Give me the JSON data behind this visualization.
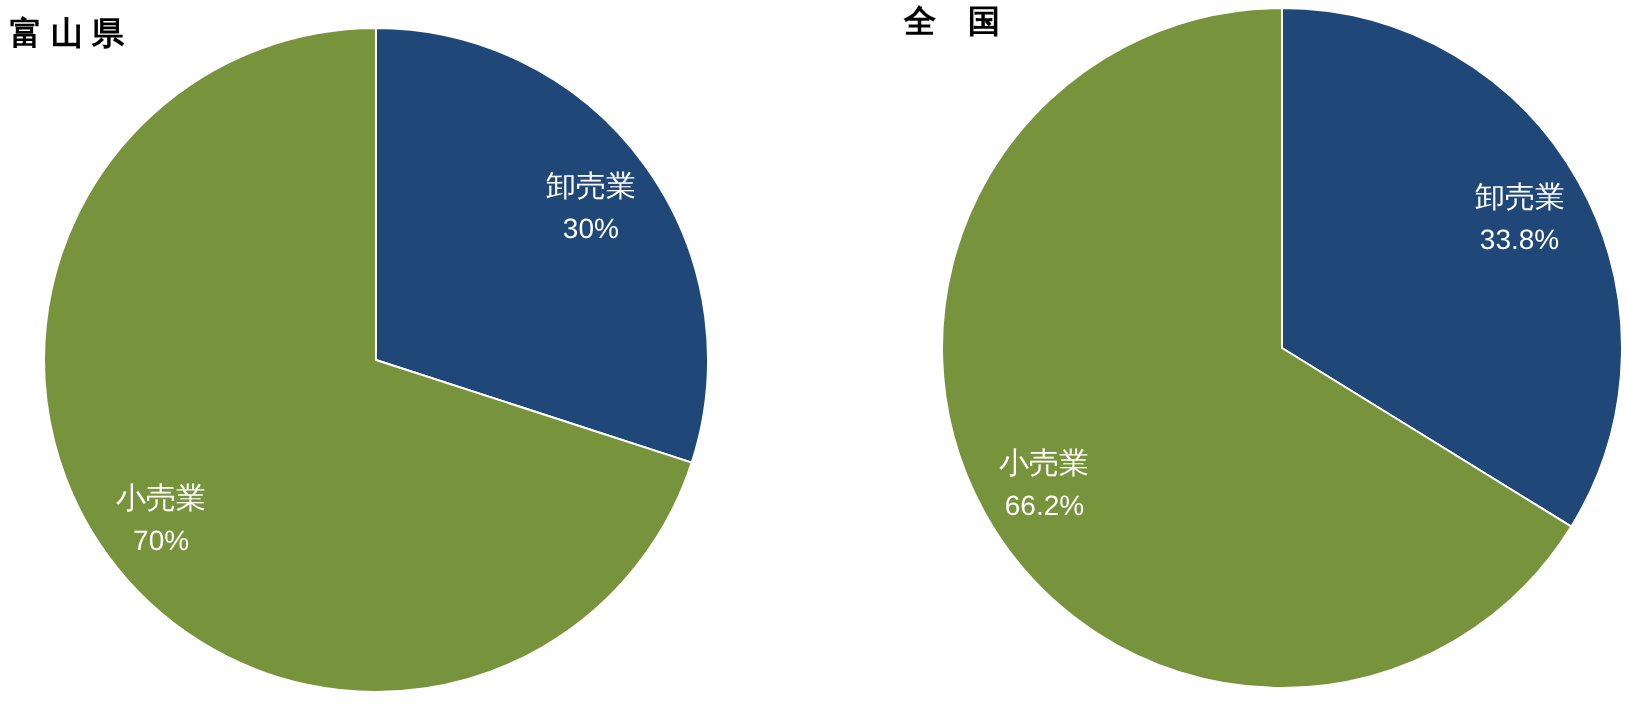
{
  "chart_data": [
    {
      "type": "pie",
      "title": "富 山 県",
      "categories": [
        "卸売業",
        "小売業"
      ],
      "values": [
        30,
        70
      ],
      "value_labels": [
        "30%",
        "70%"
      ],
      "colors": [
        "#1f4778",
        "#77933c"
      ]
    },
    {
      "type": "pie",
      "title": "全　国",
      "categories": [
        "卸売業",
        "小売業"
      ],
      "values": [
        33.8,
        66.2
      ],
      "value_labels": [
        "33.8%",
        "66.2%"
      ],
      "colors": [
        "#1f4778",
        "#77933c"
      ]
    }
  ]
}
